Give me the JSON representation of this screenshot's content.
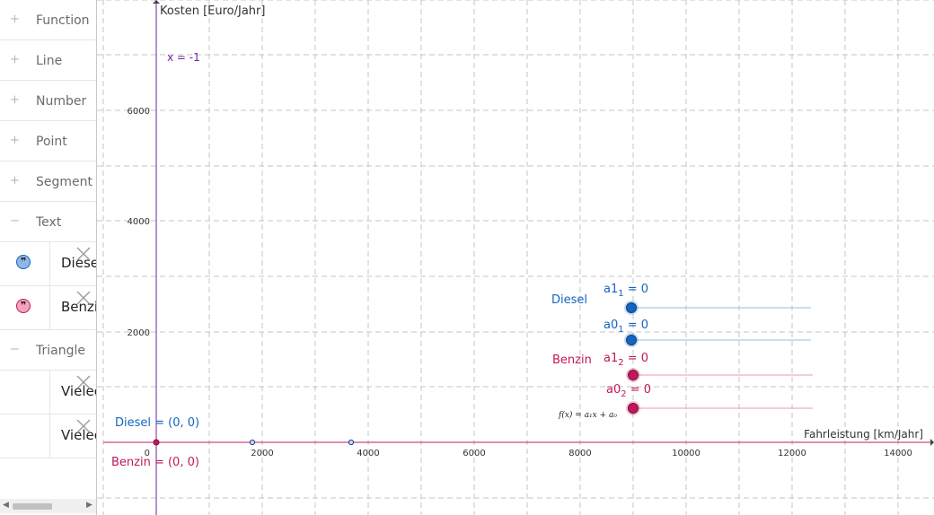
{
  "algebra": {
    "categories": [
      {
        "label": "Function",
        "state": "+"
      },
      {
        "label": "Line",
        "state": "+"
      },
      {
        "label": "Number",
        "state": "+"
      },
      {
        "label": "Point",
        "state": "+"
      },
      {
        "label": "Segment",
        "state": "+"
      },
      {
        "label": "Text",
        "state": "−"
      }
    ],
    "text_items": [
      {
        "label": "Diesel",
        "marker_color": "#1565c0",
        "marker_fill": "#8fb6e6",
        "icon": "quote-icon",
        "glyph": "❞"
      },
      {
        "label": "Benzin",
        "marker_color": "#c2185b",
        "marker_fill": "#f3a3bd",
        "icon": "quote-icon",
        "glyph": "❞"
      }
    ],
    "triangle_category": {
      "label": "Triangle",
      "state": "−"
    },
    "triangle_items": [
      {
        "label": "Vieleck"
      },
      {
        "label": "Vieleck"
      }
    ],
    "delete_icon": "close-icon"
  },
  "graph": {
    "y_axis_label": "Kosten [Euro/Jahr]",
    "x_axis_label": "Fahrleistung [km/Jahr]",
    "x_ticks": [
      "2000",
      "4000",
      "6000",
      "8000",
      "10000",
      "12000",
      "14000"
    ],
    "y_ticks": [
      "2000",
      "4000",
      "6000"
    ],
    "origin_label": "0",
    "vertical_line_label": "x = -1",
    "diesel_point_label": "Diesel = (0, 0)",
    "benzin_point_label": "Benzin = (0, 0)",
    "diesel_text": "Diesel",
    "benzin_text": "Benzin",
    "formula": "f(x) = a₁x + a₀",
    "sliders": [
      {
        "name": "a1",
        "sub": "1",
        "value": "0",
        "color": "#1565c0",
        "track": "#8fc1e6"
      },
      {
        "name": "a0",
        "sub": "1",
        "value": "0",
        "color": "#1565c0",
        "track": "#8fc1e6"
      },
      {
        "name": "a1",
        "sub": "2",
        "value": "0",
        "color": "#c2185b",
        "track": "#ee9ab4"
      },
      {
        "name": "a0",
        "sub": "2",
        "value": "0",
        "color": "#c2185b",
        "track": "#ee9ab4"
      }
    ],
    "colors": {
      "diesel": "#1565c0",
      "benzin": "#c2185b",
      "axis_line": "#c2185b",
      "vline": "#7b1fa2",
      "grid": "#c4c4c4"
    }
  }
}
